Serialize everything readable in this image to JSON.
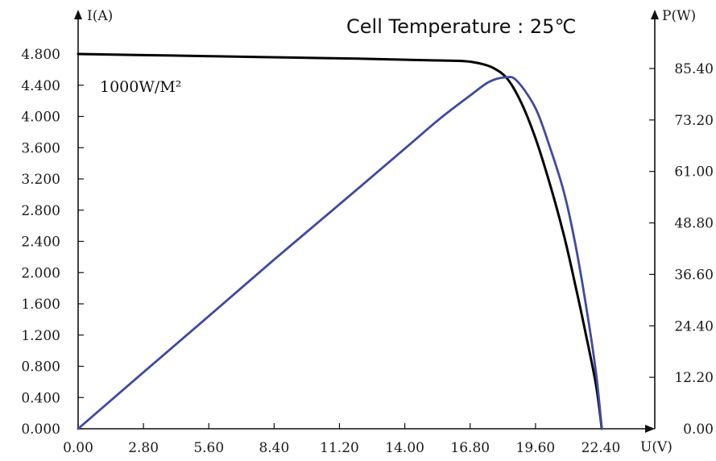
{
  "chart_data": {
    "type": "line",
    "title": "Cell Temperature : 25℃",
    "annotation": "1000W/M²",
    "xlabel": "U(V)",
    "ylabel_left": "I(A)",
    "ylabel_right": "P(W)",
    "xlim": [
      0,
      23.6
    ],
    "ylim_left": [
      0,
      4.8
    ],
    "ylim_right": [
      0,
      85.4
    ],
    "grid": false,
    "legend": "none",
    "x_ticks": [
      "0.00",
      "2.80",
      "5.60",
      "8.40",
      "11.20",
      "14.00",
      "16.80",
      "19.60",
      "22.40"
    ],
    "y_left_ticks": [
      "0.000",
      "0.400",
      "0.800",
      "1.200",
      "1.600",
      "2.000",
      "2.400",
      "2.800",
      "3.200",
      "3.600",
      "4.000",
      "4.400",
      "4.800"
    ],
    "y_right_ticks": [
      "0.00",
      "12.20",
      "24.40",
      "36.60",
      "48.80",
      "61.00",
      "73.20",
      "85.40"
    ],
    "series": [
      {
        "axis": "left",
        "color": "#000000",
        "points": [
          [
            0,
            4.8
          ],
          [
            4,
            4.78
          ],
          [
            8,
            4.76
          ],
          [
            12,
            4.74
          ],
          [
            15,
            4.72
          ],
          [
            16.5,
            4.71
          ],
          [
            17.2,
            4.68
          ],
          [
            17.8,
            4.62
          ],
          [
            18.4,
            4.48
          ],
          [
            19.0,
            4.17
          ],
          [
            19.6,
            3.72
          ],
          [
            20.2,
            3.15
          ],
          [
            20.8,
            2.5
          ],
          [
            21.3,
            1.85
          ],
          [
            21.8,
            1.15
          ],
          [
            22.2,
            0.55
          ],
          [
            22.44,
            0
          ]
        ]
      },
      {
        "axis": "right",
        "color": "#3f4a9e",
        "points": [
          [
            0,
            0
          ],
          [
            2.8,
            13.4
          ],
          [
            5.6,
            26.7
          ],
          [
            8.4,
            40.1
          ],
          [
            11.2,
            53.2
          ],
          [
            14.0,
            66.4
          ],
          [
            15.5,
            73.5
          ],
          [
            16.8,
            79.0
          ],
          [
            17.6,
            82.2
          ],
          [
            18.3,
            83.3
          ],
          [
            18.8,
            82.5
          ],
          [
            19.6,
            76.0
          ],
          [
            20.2,
            67.0
          ],
          [
            20.8,
            56.5
          ],
          [
            21.3,
            44.0
          ],
          [
            21.8,
            28.0
          ],
          [
            22.2,
            13.0
          ],
          [
            22.44,
            0
          ]
        ]
      }
    ]
  }
}
